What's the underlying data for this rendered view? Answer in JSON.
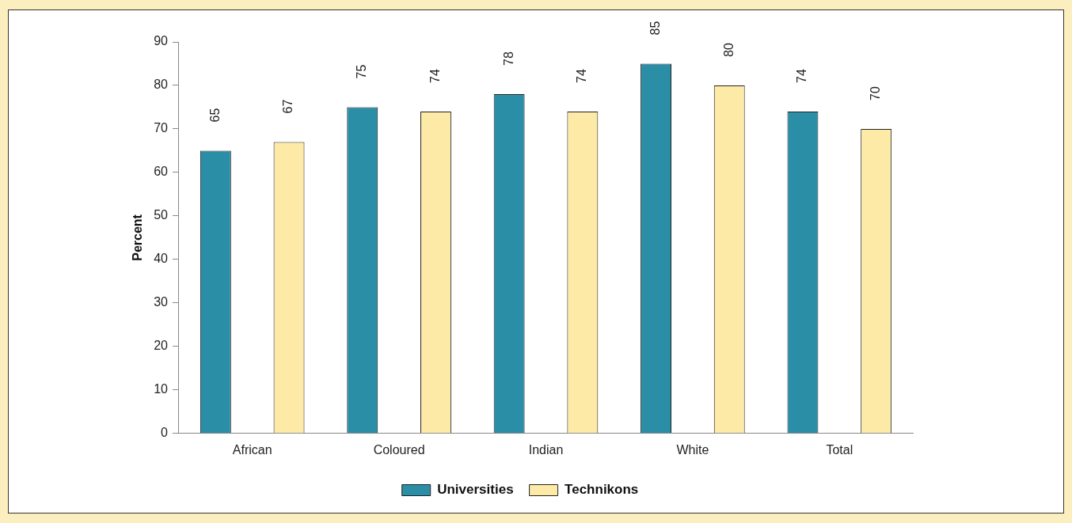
{
  "chart_data": {
    "type": "bar",
    "ylabel": "Percent",
    "categories": [
      "African",
      "Coloured",
      "Indian",
      "White",
      "Total"
    ],
    "series": [
      {
        "name": "Universities",
        "color": "#2a8fa6",
        "values": [
          65,
          75,
          78,
          85,
          74
        ]
      },
      {
        "name": "Technikons",
        "color": "#fdeaa6",
        "values": [
          67,
          74,
          74,
          80,
          70
        ]
      }
    ],
    "ylim": [
      0,
      90
    ],
    "yticks": [
      0,
      10,
      20,
      30,
      40,
      50,
      60,
      70,
      80,
      90
    ],
    "grid": false,
    "legend": "bottom",
    "data_labels": true
  }
}
